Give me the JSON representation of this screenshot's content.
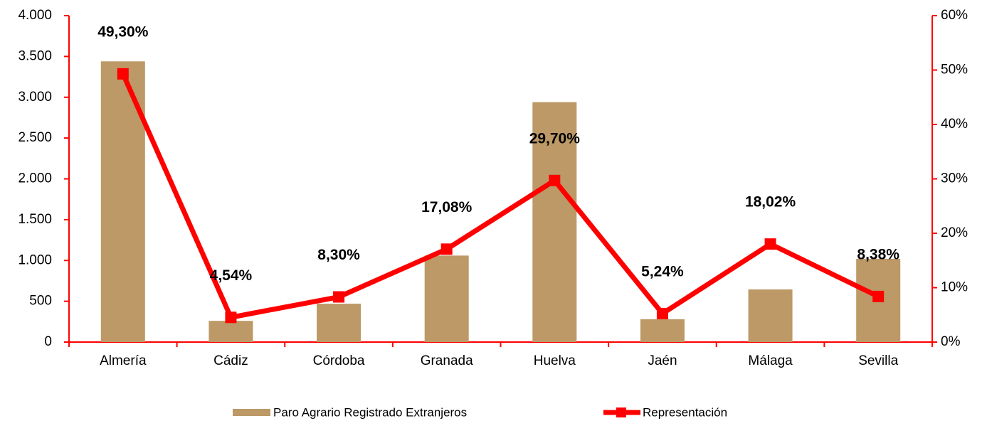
{
  "chart_data": {
    "type": "bar_line",
    "categories": [
      "Almería",
      "Cádiz",
      "Córdoba",
      "Granada",
      "Huelva",
      "Jaén",
      "Málaga",
      "Sevilla"
    ],
    "series": [
      {
        "name": "Paro Agrario Registrado Extranjeros",
        "type": "bar",
        "color": "#bc9966",
        "values": [
          3440,
          260,
          470,
          1060,
          2940,
          280,
          645,
          1020
        ]
      },
      {
        "name": "Representación",
        "type": "line",
        "axis": "y2",
        "color": "#ff0000",
        "values": [
          49.3,
          4.54,
          8.3,
          17.08,
          29.7,
          5.24,
          18.02,
          8.38
        ],
        "value_labels": [
          "49,30%",
          "4,54%",
          "8,30%",
          "17,08%",
          "29,70%",
          "5,24%",
          "18,02%",
          "8,38%"
        ]
      }
    ],
    "ylim": [
      0,
      4000
    ],
    "yticks": [
      0,
      500,
      {
        "value": 1000,
        "label": "1.000"
      },
      {
        "value": 1500,
        "label": "1.500"
      },
      {
        "value": 2000,
        "label": "2.000"
      },
      {
        "value": 2500,
        "label": "2.500"
      },
      {
        "value": 3000,
        "label": "3.000"
      },
      {
        "value": 3500,
        "label": "3.500"
      },
      {
        "value": 4000,
        "label": "4.000"
      }
    ],
    "y2lim": [
      0,
      60
    ],
    "y2ticks": [
      {
        "value": 0,
        "label": "0%"
      },
      {
        "value": 10,
        "label": "10%"
      },
      {
        "value": 20,
        "label": "20%"
      },
      {
        "value": 30,
        "label": "30%"
      },
      {
        "value": 40,
        "label": "40%"
      },
      {
        "value": 50,
        "label": "50%"
      },
      {
        "value": 60,
        "label": "60%"
      }
    ],
    "axis_color": "#ff0000",
    "legend": "bottom"
  }
}
